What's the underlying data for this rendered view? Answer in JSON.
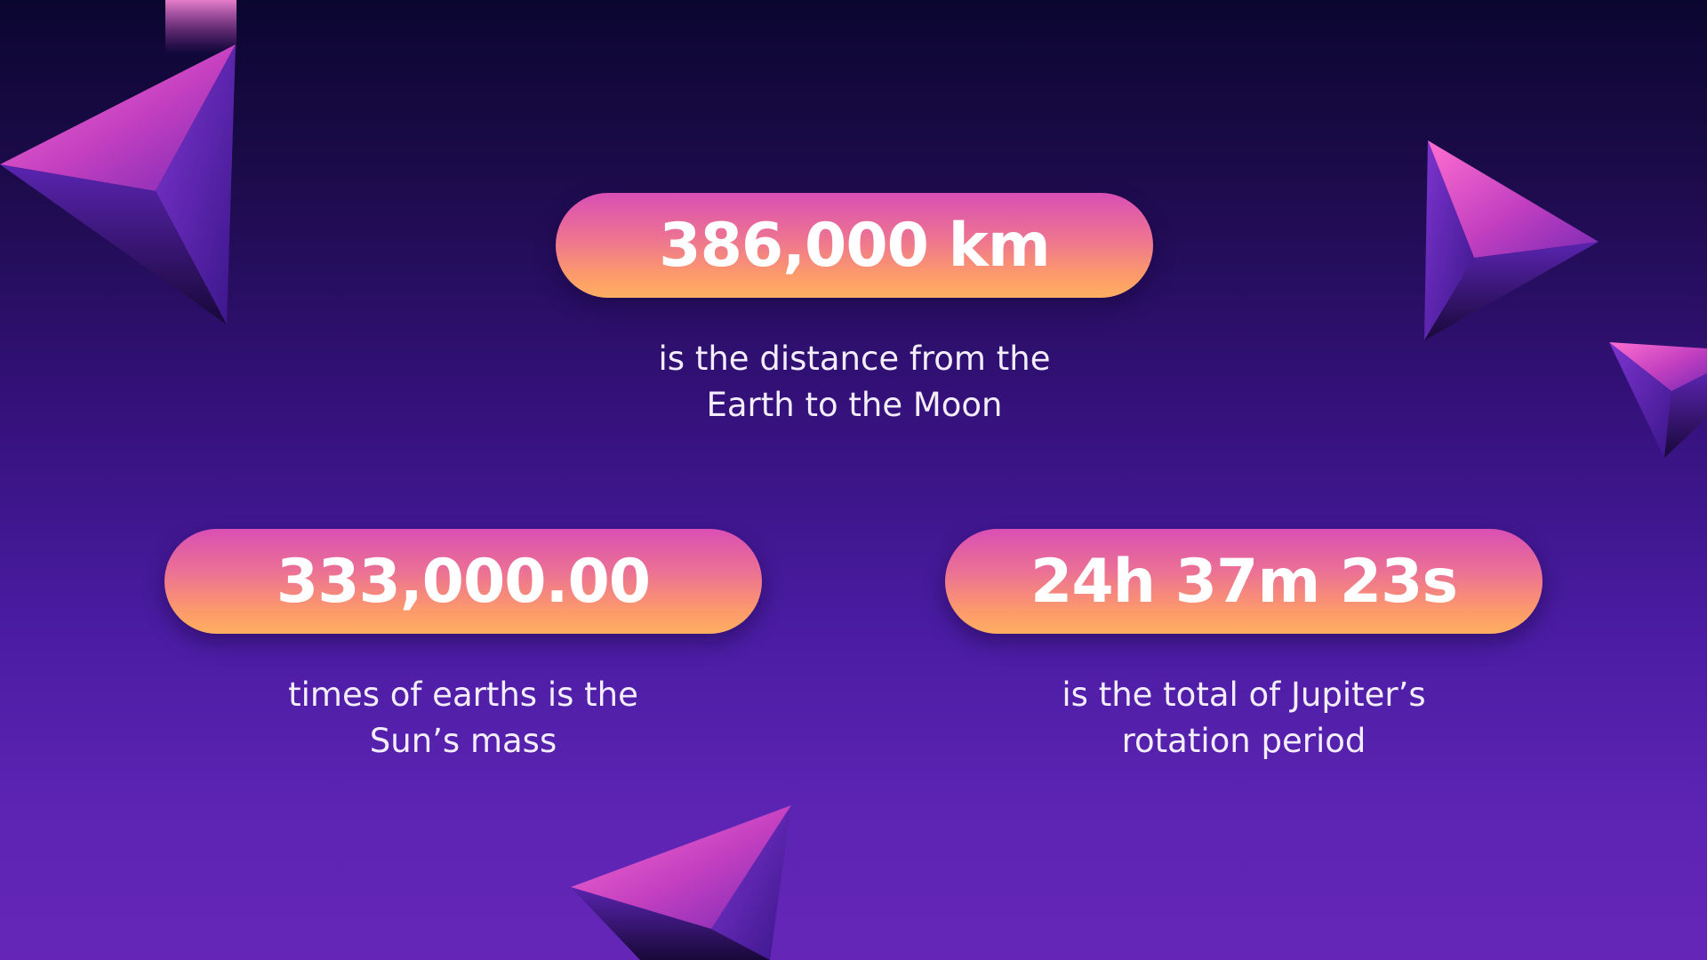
{
  "stats": [
    {
      "value": "386,000 km",
      "description_lines": [
        "is the distance from the",
        "Earth to the Moon"
      ]
    },
    {
      "value": "333,000.00",
      "description_lines": [
        "times of earths is the",
        "Sun’s mass"
      ]
    },
    {
      "value": "24h 37m 23s",
      "description_lines": [
        "is the total of Jupiter’s",
        "rotation period"
      ]
    }
  ],
  "colors": {
    "background_top": "#0b0630",
    "background_bottom": "#6526b7",
    "pill_top": "#d94fb4",
    "pill_bottom": "#ffae62",
    "text": "#ffffff",
    "triangle_pink": "#e04fc0",
    "triangle_violet": "#6a2bc4",
    "triangle_dark": "#1a0a40"
  },
  "decorations": [
    "triangle-shape",
    "triangle-shape",
    "triangle-shape",
    "triangle-shape"
  ]
}
